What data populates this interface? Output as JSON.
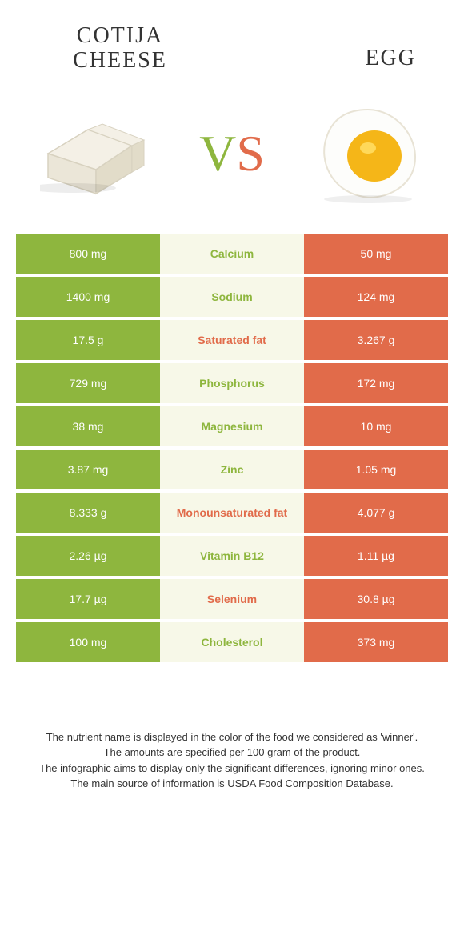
{
  "header": {
    "left_title": "COTIJA\nCHEESE",
    "right_title": "EGG"
  },
  "vs": {
    "v": "V",
    "s": "S"
  },
  "colors": {
    "left": "#8eb63e",
    "right": "#e16b4a",
    "mid_bg": "#f7f8e8",
    "text_white": "#ffffff",
    "cheese_fill": "#f4f0e6",
    "cheese_stroke": "#d8d2c0",
    "egg_white": "#fdfdfb",
    "egg_white_stroke": "#e8e3d5",
    "egg_yolk": "#f5b618",
    "egg_yolk_light": "#ffd95a"
  },
  "rows": [
    {
      "left": "800 mg",
      "nutrient": "Calcium",
      "right": "50 mg",
      "winner": "left"
    },
    {
      "left": "1400 mg",
      "nutrient": "Sodium",
      "right": "124 mg",
      "winner": "left"
    },
    {
      "left": "17.5 g",
      "nutrient": "Saturated fat",
      "right": "3.267 g",
      "winner": "right"
    },
    {
      "left": "729 mg",
      "nutrient": "Phosphorus",
      "right": "172 mg",
      "winner": "left"
    },
    {
      "left": "38 mg",
      "nutrient": "Magnesium",
      "right": "10 mg",
      "winner": "left"
    },
    {
      "left": "3.87 mg",
      "nutrient": "Zinc",
      "right": "1.05 mg",
      "winner": "left"
    },
    {
      "left": "8.333 g",
      "nutrient": "Monounsaturated fat",
      "right": "4.077 g",
      "winner": "right"
    },
    {
      "left": "2.26 µg",
      "nutrient": "Vitamin B12",
      "right": "1.11 µg",
      "winner": "left"
    },
    {
      "left": "17.7 µg",
      "nutrient": "Selenium",
      "right": "30.8 µg",
      "winner": "right"
    },
    {
      "left": "100 mg",
      "nutrient": "Cholesterol",
      "right": "373 mg",
      "winner": "left"
    }
  ],
  "footnote": {
    "l1": "The nutrient name is displayed in the color of the food we considered as 'winner'.",
    "l2": "The amounts are specified per 100 gram of the product.",
    "l3": "The infographic aims to display only the significant differences, ignoring minor ones.",
    "l4": "The main source of information is USDA Food Composition Database."
  }
}
